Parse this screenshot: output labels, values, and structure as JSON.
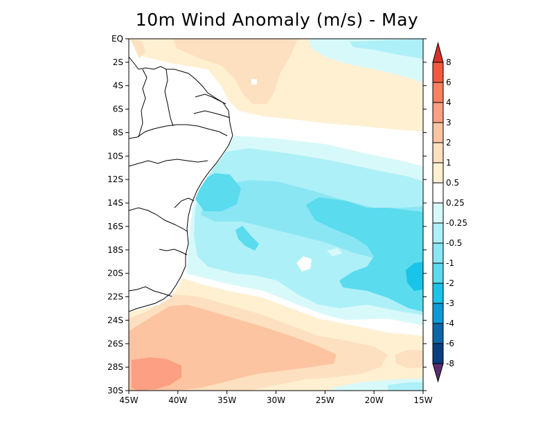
{
  "title": "10m Wind Anomaly (m/s) - May",
  "units": "m/s",
  "month": "May",
  "lat_labels": [
    "EQ",
    "2S",
    "4S",
    "6S",
    "8S",
    "10S",
    "12S",
    "14S",
    "16S",
    "18S",
    "20S",
    "22S",
    "24S",
    "26S",
    "28S",
    "30S"
  ],
  "lon_labels": [
    "45W",
    "40W",
    "35W",
    "30W",
    "25W",
    "20W",
    "15W"
  ],
  "colorbar": {
    "labels": [
      "8",
      "6",
      "4",
      "3",
      "2",
      "1",
      "0.5",
      "0.25",
      "-0.25",
      "-0.5",
      "-1",
      "-2",
      "-3",
      "-4",
      "-6",
      "-8"
    ],
    "colors": [
      "#d6322b",
      "#f3593f",
      "#fb8060",
      "#fc9f82",
      "#fdc4a2",
      "#fde0c0",
      "#fff0d2",
      "#ffffff",
      "#d8f9fa",
      "#aef0f8",
      "#8ae6f3",
      "#5adbee",
      "#1ac4e8",
      "#0a9ad8",
      "#0b67a8",
      "#093e7f",
      "#5b2d6e"
    ],
    "top_arrow_color": "#d6322b",
    "bottom_arrow_color": "#5b2d6e"
  },
  "colors": {
    "land": "#ffffff",
    "coast": "#000000",
    "frame": "#000000"
  }
}
